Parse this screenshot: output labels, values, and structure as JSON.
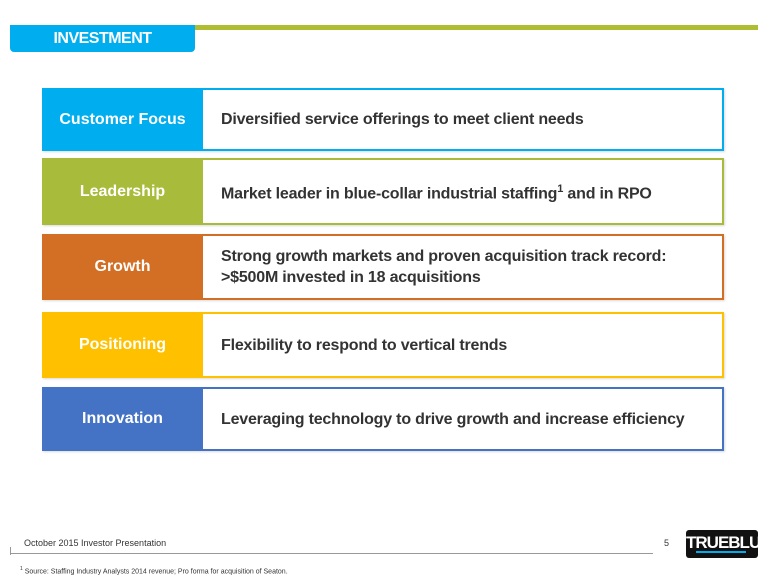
{
  "header": {
    "title": "INVESTMENT HIGHLIGHTS"
  },
  "rows": [
    {
      "label": "Customer Focus",
      "text": "Diversified service offerings to meet client needs",
      "color": "#00aeef"
    },
    {
      "label": "Leadership",
      "text": "Market leader in blue-collar industrial staffing",
      "sup": "1",
      "text_after": " and in RPO",
      "color": "#a9bb3a"
    },
    {
      "label": "Growth",
      "text": "Strong growth markets and proven acquisition track record: >$500M invested in 18 acquisitions",
      "color": "#d36f24"
    },
    {
      "label": "Positioning",
      "text": "Flexibility to respond to vertical trends",
      "color": "#ffc000"
    },
    {
      "label": "Innovation",
      "text": "Leveraging technology to drive growth and increase efficiency",
      "color": "#4472c4"
    }
  ],
  "footer": {
    "presentation": "October 2015 Investor Presentation",
    "page": "5",
    "footnote_mark": "1",
    "footnote": "Source: Staffing Industry Analysts 2014 revenue; Pro forma for acquisition of Seaton.",
    "logo": "TRUEBLUE"
  }
}
